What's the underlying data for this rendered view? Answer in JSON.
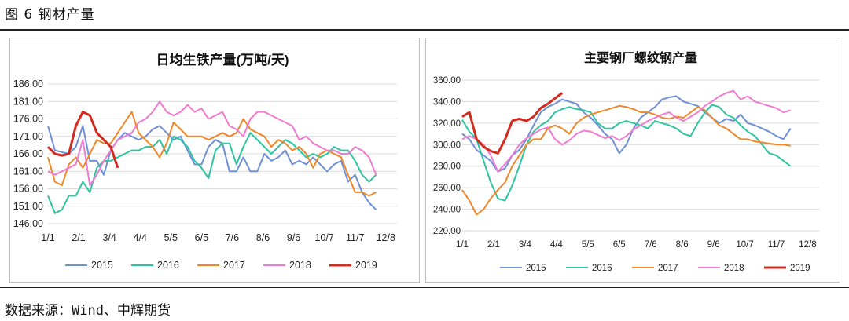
{
  "figure": {
    "title": "图 6  钢材产量",
    "source": "数据来源：Wind、中辉期货"
  },
  "colors": {
    "2015": "#6f8fd6",
    "2016": "#2ec4a0",
    "2017": "#f0882a",
    "2018": "#f07bd0",
    "2019": "#d42a1e"
  },
  "chart_data": [
    {
      "type": "line",
      "title": "日均生铁产量(万吨/天)",
      "xlabel": "",
      "ylabel": "",
      "x_ticks": [
        "1/1",
        "2/1",
        "3/4",
        "4/4",
        "5/5",
        "6/5",
        "7/6",
        "8/6",
        "9/6",
        "10/7",
        "11/7",
        "12/8"
      ],
      "y_ticks": [
        "146.00",
        "151.00",
        "156.00",
        "161.00",
        "166.00",
        "171.00",
        "176.00",
        "181.00",
        "186.00"
      ],
      "ylim": [
        146,
        186
      ],
      "x_range_weeks": [
        0,
        50
      ],
      "grid": true,
      "legend_position": "bottom",
      "series": [
        {
          "name": "2015",
          "values": [
            174,
            167,
            166.5,
            166,
            168,
            174,
            164,
            164,
            160,
            167,
            170,
            172,
            171,
            170,
            171,
            173,
            174,
            172,
            170,
            171,
            167,
            163,
            163,
            168,
            170,
            169,
            161,
            161,
            165,
            161,
            161,
            166,
            164,
            165,
            167,
            163,
            164,
            163,
            165,
            163,
            161,
            163,
            164,
            158,
            160,
            155,
            152,
            150
          ]
        },
        {
          "name": "2016",
          "values": [
            154,
            149,
            150,
            154,
            154,
            158,
            155,
            162,
            164,
            164,
            165,
            166,
            167,
            167,
            168,
            168,
            170,
            166,
            171,
            170,
            168,
            164,
            162,
            159,
            167,
            169,
            169,
            163,
            168,
            172,
            170,
            168,
            166,
            168,
            170,
            169,
            167,
            165,
            166,
            165,
            166,
            168,
            167,
            167,
            164,
            160,
            158,
            160
          ]
        },
        {
          "name": "2017",
          "values": [
            165,
            158,
            157,
            163,
            165,
            162,
            166,
            170,
            169,
            169,
            172,
            175,
            178,
            172,
            170,
            168,
            165,
            169,
            175,
            173,
            171,
            171,
            171,
            170,
            171,
            172,
            171,
            172,
            176,
            173,
            172,
            171,
            168,
            170,
            169,
            167,
            168,
            166,
            162,
            166,
            167,
            166,
            165,
            160,
            155,
            155,
            154,
            155
          ]
        },
        {
          "name": "2018",
          "values": [
            161,
            160,
            161,
            162,
            163,
            170,
            157,
            160,
            164,
            167,
            170,
            171,
            172,
            175,
            176,
            178,
            181,
            178,
            177,
            178,
            180,
            178,
            179,
            176,
            177,
            178,
            174,
            173,
            171,
            176,
            178,
            178,
            177,
            176,
            175,
            174,
            170,
            171,
            169,
            168,
            167,
            167,
            166,
            166,
            168,
            167,
            165,
            160
          ]
        },
        {
          "name": "2019",
          "values": [
            168,
            166,
            165.5,
            166,
            174,
            178,
            177,
            172,
            170,
            168,
            162
          ]
        }
      ]
    },
    {
      "type": "line",
      "title": "主要钢厂螺纹钢产量",
      "xlabel": "",
      "ylabel": "",
      "x_ticks": [
        "1/1",
        "2/1",
        "3/4",
        "4/4",
        "5/5",
        "6/5",
        "7/6",
        "8/6",
        "9/6",
        "10/7",
        "11/7",
        "12/8"
      ],
      "y_ticks": [
        "220.00",
        "240.00",
        "260.00",
        "280.00",
        "300.00",
        "320.00",
        "340.00",
        "360.00"
      ],
      "ylim": [
        220,
        360
      ],
      "x_range_weeks": [
        0,
        50
      ],
      "grid": true,
      "legend_position": "bottom",
      "series": [
        {
          "name": "2015",
          "values": [
            310,
            305,
            295,
            290,
            285,
            275,
            278,
            290,
            295,
            305,
            318,
            330,
            335,
            338,
            342,
            340,
            338,
            330,
            325,
            318,
            310,
            305,
            292,
            300,
            315,
            325,
            330,
            335,
            342,
            344,
            345,
            340,
            338,
            336,
            330,
            325,
            320,
            324,
            322,
            328,
            320,
            318,
            315,
            312,
            308,
            305,
            315
          ]
        },
        {
          "name": "2016",
          "values": [
            323,
            312,
            305,
            285,
            265,
            250,
            248,
            262,
            280,
            300,
            312,
            318,
            322,
            330,
            333,
            335,
            333,
            332,
            330,
            320,
            315,
            315,
            320,
            322,
            320,
            318,
            315,
            322,
            320,
            318,
            315,
            310,
            308,
            320,
            330,
            337,
            335,
            328,
            325,
            318,
            312,
            308,
            300,
            292,
            290,
            285,
            280
          ]
        },
        {
          "name": "2017",
          "values": [
            258,
            248,
            235,
            240,
            250,
            258,
            265,
            280,
            290,
            300,
            305,
            305,
            315,
            318,
            315,
            310,
            320,
            325,
            328,
            330,
            332,
            334,
            336,
            335,
            333,
            330,
            330,
            328,
            325,
            324,
            326,
            325,
            330,
            335,
            332,
            325,
            318,
            315,
            310,
            305,
            305,
            303,
            302,
            301,
            300,
            300,
            299
          ]
        },
        {
          "name": "2018",
          "values": [
            305,
            308,
            305,
            300,
            290,
            275,
            282,
            290,
            300,
            306,
            310,
            314,
            316,
            305,
            300,
            304,
            310,
            313,
            312,
            309,
            306,
            308,
            304,
            308,
            314,
            318,
            322,
            325,
            328,
            330,
            325,
            322,
            326,
            330,
            336,
            340,
            345,
            348,
            350,
            342,
            345,
            340,
            338,
            336,
            334,
            330,
            332
          ]
        },
        {
          "name": "2019",
          "values": [
            326,
            330,
            305,
            298,
            294,
            292,
            305,
            322,
            324,
            322,
            326,
            334,
            338,
            343,
            348
          ]
        }
      ]
    }
  ]
}
